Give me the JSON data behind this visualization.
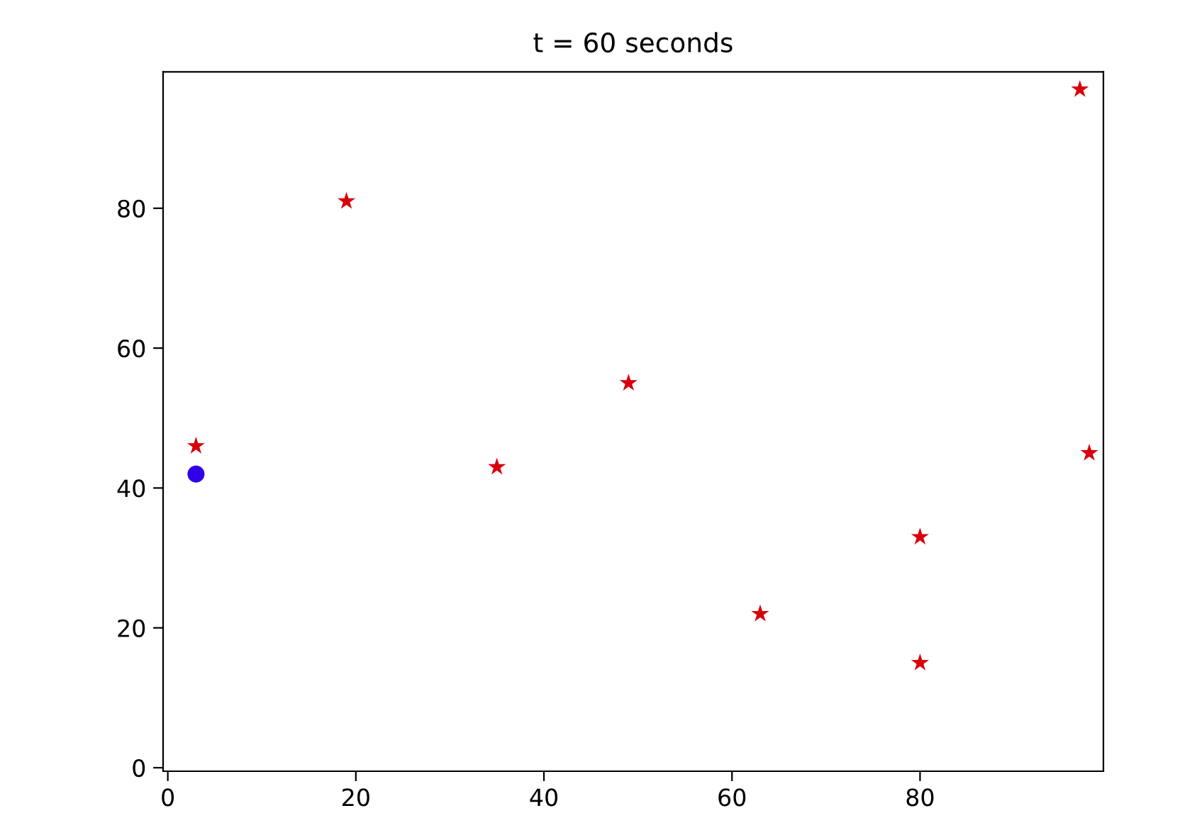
{
  "chart_data": {
    "type": "scatter",
    "title": "t = 60 seconds",
    "xlim": [
      -0.5,
      99.5
    ],
    "ylim": [
      -0.5,
      99.5
    ],
    "xticks": [
      0,
      20,
      40,
      60,
      80
    ],
    "yticks": [
      0,
      20,
      40,
      60,
      80
    ],
    "grid": false,
    "series": [
      {
        "color": "#2f00e8",
        "marker": "circle",
        "x": [
          3
        ],
        "values": [
          42
        ]
      },
      {
        "color": "#d8000c",
        "marker": "star",
        "x": [
          3,
          19,
          35,
          49,
          63,
          80,
          80,
          97,
          98
        ],
        "values": [
          46,
          81,
          43,
          55,
          22,
          33,
          15,
          97,
          45
        ]
      }
    ]
  }
}
